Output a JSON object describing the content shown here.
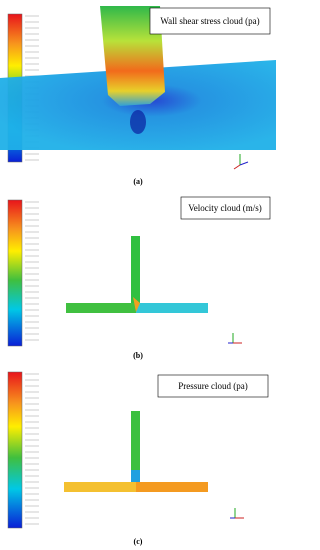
{
  "panels": [
    {
      "title": "Wall shear stress cloud (pa)",
      "caption": "(a)"
    },
    {
      "title": "Velocity cloud (m/s)",
      "caption": "(b)"
    },
    {
      "title": "Pressure cloud (pa)",
      "caption": "(c)"
    }
  ]
}
